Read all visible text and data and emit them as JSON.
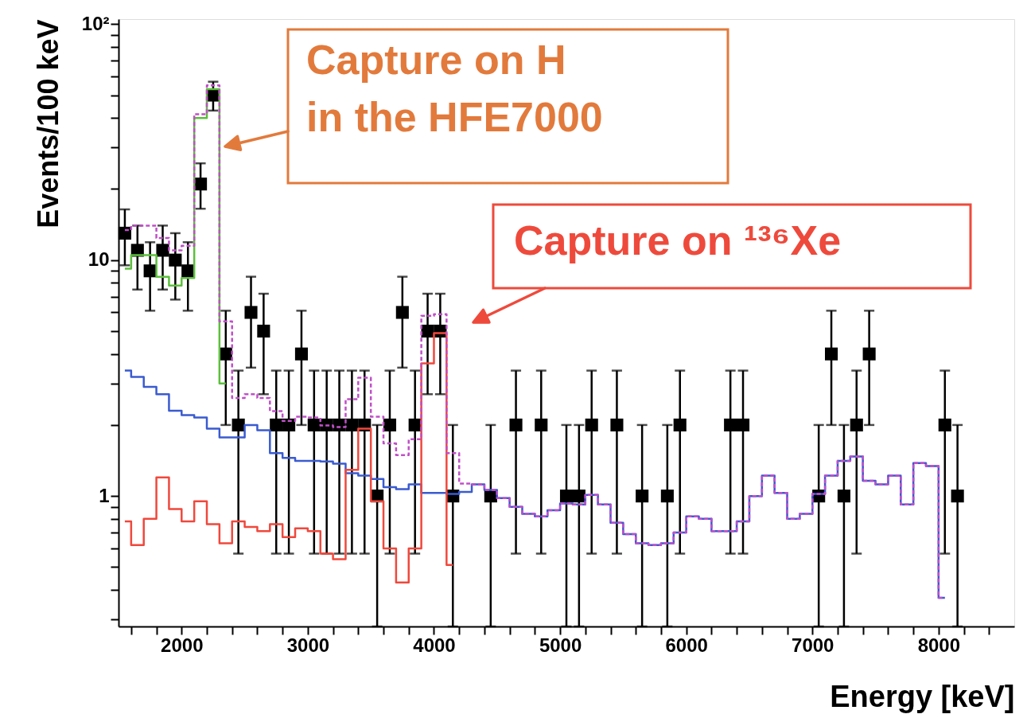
{
  "chart_data": {
    "type": "step",
    "xlabel": "Energy [keV]",
    "ylabel": "Events/100 keV",
    "log": "y",
    "grid": false,
    "xlim": [
      1500,
      8600
    ],
    "xticks": [
      {
        "value": 1600,
        "label": null
      },
      {
        "value": 1800,
        "label": null
      },
      2000,
      {
        "value": 2200,
        "label": null
      },
      {
        "value": 2400,
        "label": null
      },
      {
        "value": 2600,
        "label": null
      },
      {
        "value": 2800,
        "label": null
      },
      3000,
      {
        "value": 3200,
        "label": null
      },
      {
        "value": 3400,
        "label": null
      },
      {
        "value": 3600,
        "label": null
      },
      {
        "value": 3800,
        "label": null
      },
      4000,
      {
        "value": 4200,
        "label": null
      },
      {
        "value": 4400,
        "label": null
      },
      {
        "value": 4600,
        "label": null
      },
      {
        "value": 4800,
        "label": null
      },
      5000,
      {
        "value": 5200,
        "label": null
      },
      {
        "value": 5400,
        "label": null
      },
      {
        "value": 5600,
        "label": null
      },
      {
        "value": 5800,
        "label": null
      },
      6000,
      {
        "value": 6200,
        "label": null
      },
      {
        "value": 6400,
        "label": null
      },
      {
        "value": 6600,
        "label": null
      },
      {
        "value": 6800,
        "label": null
      },
      7000,
      {
        "value": 7200,
        "label": null
      },
      {
        "value": 7400,
        "label": null
      },
      {
        "value": 7600,
        "label": null
      },
      {
        "value": 7800,
        "label": null
      },
      8000,
      {
        "value": 8200,
        "label": null
      },
      {
        "value": 8400,
        "label": null
      }
    ],
    "ylim": [
      0.28,
      105
    ],
    "yticks": [
      {
        "value": 0.3,
        "label": null
      },
      {
        "value": 0.4,
        "label": null
      },
      {
        "value": 0.5,
        "label": null
      },
      {
        "value": 0.6,
        "label": null
      },
      {
        "value": 0.7,
        "label": null
      },
      {
        "value": 0.8,
        "label": null
      },
      {
        "value": 0.9,
        "label": null
      },
      1,
      {
        "value": 2,
        "label": null
      },
      {
        "value": 3,
        "label": null
      },
      {
        "value": 4,
        "label": null
      },
      {
        "value": 5,
        "label": null
      },
      {
        "value": 6,
        "label": null
      },
      {
        "value": 7,
        "label": null
      },
      {
        "value": 8,
        "label": null
      },
      {
        "value": 9,
        "label": null
      },
      10,
      {
        "value": 20,
        "label": null
      },
      {
        "value": 30,
        "label": null
      },
      {
        "value": 40,
        "label": null
      },
      {
        "value": 50,
        "label": null
      },
      {
        "value": 60,
        "label": null
      },
      {
        "value": 70,
        "label": null
      },
      {
        "value": 80,
        "label": null
      },
      {
        "value": 90,
        "label": null
      },
      {
        "value": 100,
        "label": "10²"
      }
    ],
    "series": [
      {
        "color": "#3a5bd0",
        "line_style": "solid",
        "x": [
          1550,
          1650,
          1750,
          1850,
          1950,
          2050,
          2150,
          2250,
          2350,
          2450,
          2550,
          2650,
          2750,
          2850,
          2950,
          3050,
          3150,
          3250,
          3350,
          3450,
          3550,
          3650,
          3750,
          3850,
          3950,
          4050,
          4150,
          4250,
          4350,
          4450,
          4550,
          4650,
          4750,
          4850,
          4950,
          5050,
          5150,
          5250,
          5350,
          5450,
          5550,
          5650,
          5750,
          5850,
          5950,
          6050,
          6150,
          6250,
          6350,
          6450,
          6550,
          6650,
          6750,
          6850,
          6950,
          7050,
          7150,
          7250,
          7350,
          7450,
          7550,
          7650,
          7750,
          7850,
          7950,
          8050
        ],
        "values": [
          3.4,
          3.2,
          2.9,
          2.7,
          2.3,
          2.2,
          2.15,
          1.93,
          1.77,
          1.77,
          2.0,
          1.9,
          1.52,
          1.45,
          1.41,
          1.41,
          1.4,
          1.37,
          1.25,
          1.22,
          1.18,
          1.09,
          1.07,
          1.12,
          1.03,
          1.03,
          1.02,
          1.04,
          1.12,
          1.06,
          0.98,
          0.9,
          0.84,
          0.82,
          0.87,
          0.93,
          0.92,
          1.01,
          0.92,
          0.77,
          0.69,
          0.63,
          0.62,
          0.63,
          0.7,
          0.82,
          0.8,
          0.71,
          0.71,
          0.78,
          1.0,
          1.22,
          1.03,
          0.8,
          0.84,
          1.02,
          1.22,
          1.41,
          1.47,
          1.16,
          1.12,
          1.22,
          0.92,
          1.38,
          1.34,
          0.37
        ]
      },
      {
        "color": "#f0483c",
        "line_style": "solid",
        "x": [
          1550,
          1650,
          1750,
          1850,
          1950,
          2050,
          2150,
          2250,
          2350,
          2450,
          2550,
          2650,
          2750,
          2850,
          2950,
          3050,
          3150,
          3250,
          3350,
          3450,
          3550,
          3650,
          3750,
          3850,
          3950,
          4050,
          4150
        ],
        "values": [
          0.78,
          0.62,
          0.8,
          1.2,
          0.88,
          0.78,
          0.95,
          0.76,
          0.63,
          0.78,
          0.74,
          0.71,
          0.76,
          0.67,
          0.73,
          0.71,
          0.57,
          0.54,
          1.29,
          1.93,
          0.95,
          0.6,
          0.43,
          0.6,
          3.65,
          4.9,
          0.51
        ]
      },
      {
        "color": "#5cbf3c",
        "line_style": "solid",
        "x": [
          1550,
          1650,
          1750,
          1850,
          1950,
          2050,
          2150,
          2250,
          2350
        ],
        "values": [
          9.2,
          10.5,
          10.5,
          8.5,
          7.8,
          8.4,
          40,
          53,
          3.0
        ]
      },
      {
        "color": "#c04fc8",
        "line_style": "dashed",
        "x": [
          1550,
          1650,
          1750,
          1850,
          1950,
          2050,
          2150,
          2250,
          2350,
          2450,
          2550,
          2650,
          2750,
          2850,
          2950,
          3050,
          3150,
          3250,
          3350,
          3450,
          3550,
          3650,
          3750,
          3850,
          3950,
          4050,
          4150,
          4250,
          4350,
          4450,
          4550,
          4650,
          4750,
          4850,
          4950,
          5050,
          5150,
          5250,
          5350,
          5450,
          5550,
          5650,
          5750,
          5850,
          5950,
          6050,
          6150,
          6250,
          6350,
          6450,
          6550,
          6650,
          6750,
          6850,
          6950,
          7050,
          7150,
          7250,
          7350,
          7450,
          7550,
          7650,
          7750,
          7850,
          7950,
          8050
        ],
        "values": [
          13.4,
          14,
          14,
          12.4,
          11.0,
          11.5,
          41.5,
          55,
          5.5,
          2.6,
          2.7,
          2.6,
          2.29,
          2.08,
          2.17,
          2.15,
          1.99,
          1.96,
          2.57,
          3.17,
          2.17,
          1.67,
          1.49,
          1.74,
          5.8,
          5.9,
          1.52,
          1.13,
          1.12,
          1.06,
          0.98,
          0.9,
          0.84,
          0.82,
          0.87,
          0.93,
          0.92,
          1.01,
          0.92,
          0.77,
          0.69,
          0.63,
          0.62,
          0.63,
          0.7,
          0.82,
          0.8,
          0.71,
          0.71,
          0.78,
          1.0,
          1.22,
          1.03,
          0.8,
          0.84,
          1.02,
          1.22,
          1.41,
          1.47,
          1.16,
          1.12,
          1.22,
          0.92,
          1.38,
          1.34,
          0.37
        ]
      },
      {
        "type": "scatter",
        "color": "#000000",
        "marker": "square",
        "x": [
          1550,
          1650,
          1750,
          1850,
          1950,
          2050,
          2150,
          2250,
          2350,
          2450,
          2550,
          2650,
          2750,
          2850,
          2950,
          3050,
          3150,
          3250,
          3350,
          3450,
          3550,
          3650,
          3750,
          3850,
          3950,
          4050,
          4150,
          4450,
          4650,
          4850,
          5050,
          5150,
          5250,
          5450,
          5650,
          5850,
          5950,
          6350,
          6450,
          7050,
          7150,
          7250,
          7350,
          7450,
          8050,
          8150
        ],
        "values": [
          13,
          11,
          9,
          11,
          10,
          9,
          21,
          50,
          4,
          2,
          6,
          5,
          2,
          2,
          4,
          2,
          2,
          2,
          2,
          2,
          1,
          2,
          6,
          2,
          5,
          5,
          1,
          1,
          2,
          2,
          1,
          1,
          2,
          2,
          1,
          1,
          2,
          2,
          2,
          1,
          4,
          1,
          2,
          4,
          2,
          1
        ],
        "errors": [
          [
            9.5,
            16.4
          ],
          [
            7.5,
            14
          ],
          [
            6.1,
            11.9
          ],
          [
            7.5,
            14
          ],
          [
            6.8,
            13
          ],
          [
            6.1,
            11.9
          ],
          [
            16.5,
            25.7
          ],
          [
            43,
            57
          ],
          [
            2,
            6.1
          ],
          [
            0.57,
            3.4
          ],
          [
            3.5,
            8.5
          ],
          [
            2.7,
            7.2
          ],
          [
            0.57,
            3.4
          ],
          [
            0.57,
            3.4
          ],
          [
            2,
            6.1
          ],
          [
            0.57,
            3.4
          ],
          [
            0.57,
            3.4
          ],
          [
            0.57,
            3.4
          ],
          [
            0.57,
            3.4
          ],
          [
            0.57,
            3.4
          ],
          [
            0.28,
            2
          ],
          [
            0.57,
            3.4
          ],
          [
            3.5,
            8.5
          ],
          [
            0.57,
            3.4
          ],
          [
            2.7,
            7.2
          ],
          [
            2.7,
            7.2
          ],
          [
            0.28,
            2
          ],
          [
            0.28,
            2
          ],
          [
            0.57,
            3.4
          ],
          [
            0.57,
            3.4
          ],
          [
            0.28,
            2
          ],
          [
            0.28,
            2
          ],
          [
            0.57,
            3.4
          ],
          [
            0.57,
            3.4
          ],
          [
            0.28,
            2
          ],
          [
            0.28,
            2
          ],
          [
            0.57,
            3.4
          ],
          [
            0.57,
            3.4
          ],
          [
            0.57,
            3.4
          ],
          [
            0.28,
            2
          ],
          [
            2,
            6.1
          ],
          [
            0.28,
            2
          ],
          [
            0.57,
            3.4
          ],
          [
            2,
            6.1
          ],
          [
            0.57,
            3.4
          ],
          [
            0.28,
            2
          ]
        ]
      }
    ],
    "annotations": [
      "Capture on H\nin the HFE7000",
      "Capture on ¹³⁶Xe"
    ]
  }
}
